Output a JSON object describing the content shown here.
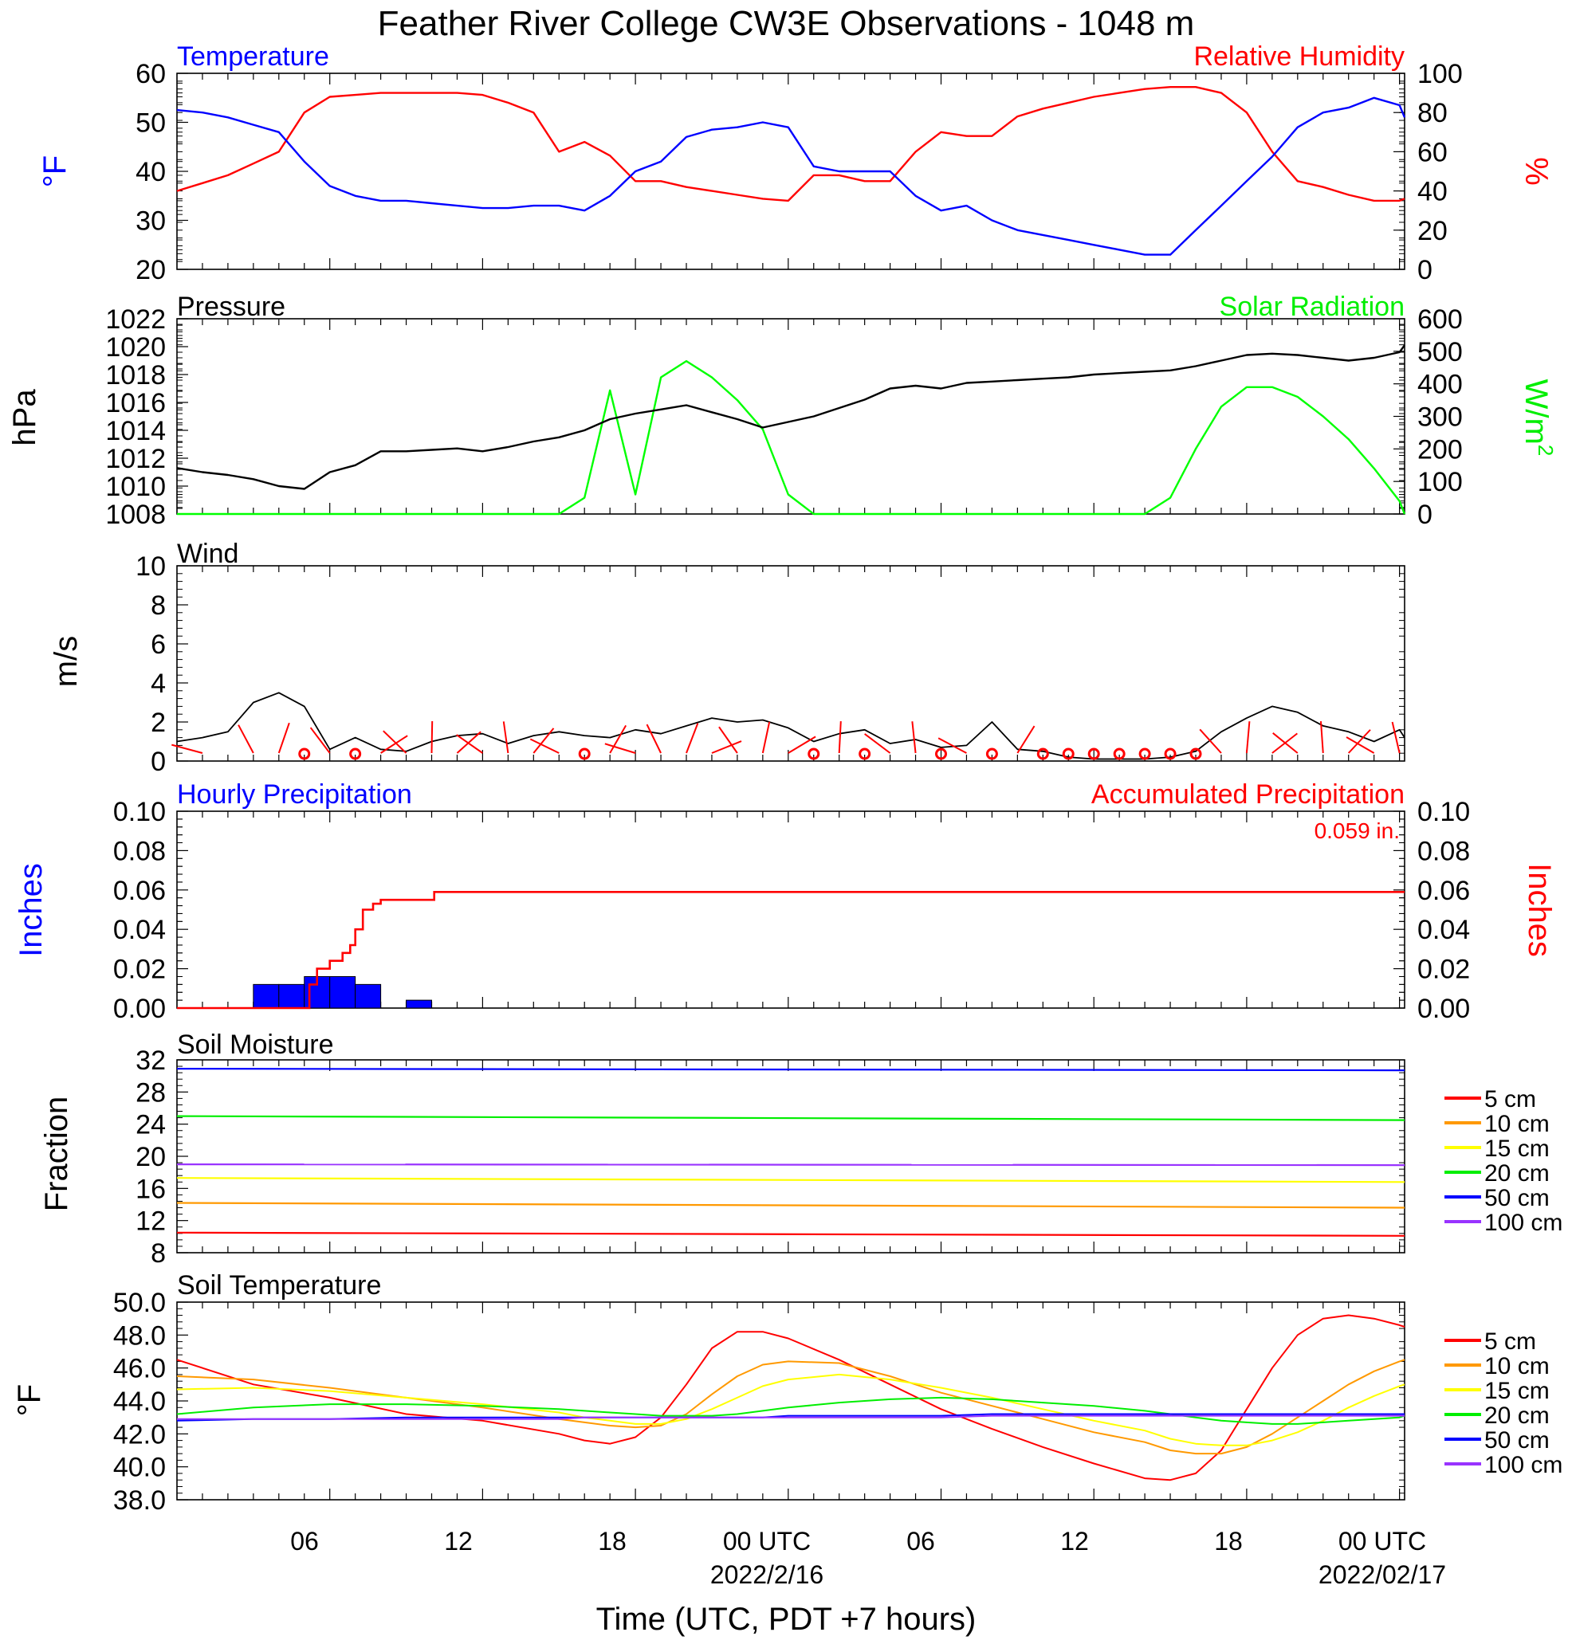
{
  "title": "Feather River College CW3E Observations - 1048 m",
  "xlabel": "Time (UTC, PDT +7 hours)",
  "x_ticks": [
    "06",
    "12",
    "18",
    "00 UTC",
    "06",
    "12",
    "18",
    "00 UTC"
  ],
  "x_dates": [
    "2022/2/16",
    "2022/02/17"
  ],
  "chart_data": [
    {
      "type": "line",
      "left_title": "Temperature",
      "right_title": "Relative Humidity",
      "ylabel_left": "°F",
      "ylabel_right": "%",
      "ylim_left": [
        20,
        60
      ],
      "ylim_right": [
        0,
        100
      ],
      "yticks_left": [
        "20",
        "30",
        "40",
        "50",
        "60"
      ],
      "yticks_right": [
        "0",
        "20",
        "40",
        "60",
        "80",
        "100"
      ],
      "colors": {
        "left": "#0000ff",
        "right": "#ff0000"
      },
      "x_hours": [
        0,
        1,
        2,
        3,
        4,
        5,
        6,
        7,
        8,
        9,
        10,
        11,
        12,
        13,
        14,
        15,
        16,
        17,
        18,
        19,
        20,
        21,
        22,
        23,
        24,
        25,
        26,
        27,
        28,
        29,
        30,
        31,
        32,
        33,
        34,
        35,
        36,
        37,
        38,
        39,
        40,
        41,
        42,
        43,
        44,
        45,
        46,
        47,
        48,
        48.2
      ],
      "series": [
        {
          "name": "Temperature",
          "axis": "left",
          "values": [
            52.5,
            52,
            51,
            49.5,
            48,
            42,
            37,
            35,
            34,
            34,
            33.5,
            33,
            32.5,
            32.5,
            33,
            33,
            32,
            35,
            40,
            42,
            47,
            48.5,
            49,
            50,
            49,
            41,
            40,
            40,
            40,
            35,
            32,
            33,
            30,
            28,
            27,
            26,
            25,
            24,
            23,
            23,
            28,
            33,
            38,
            43,
            49,
            52,
            53,
            55,
            53.5,
            51
          ]
        },
        {
          "name": "Relative Humidity",
          "axis": "right",
          "values": [
            40,
            44,
            48,
            54,
            60,
            80,
            88,
            89,
            90,
            90,
            90,
            90,
            89,
            85,
            80,
            60,
            65,
            58,
            45,
            45,
            42,
            40,
            38,
            36,
            35,
            48,
            48,
            45,
            45,
            60,
            70,
            68,
            68,
            78,
            82,
            85,
            88,
            90,
            92,
            93,
            93,
            90,
            80,
            60,
            45,
            42,
            38,
            35,
            35,
            36
          ]
        }
      ]
    },
    {
      "type": "line",
      "left_title": "Pressure",
      "right_title": "Solar Radiation",
      "ylabel_left": "hPa",
      "ylabel_right": "W/m",
      "ylabel_right_sup": "2",
      "ylim_left": [
        1008,
        1022
      ],
      "ylim_right": [
        0,
        600
      ],
      "yticks_left": [
        "1008",
        "1010",
        "1012",
        "1014",
        "1016",
        "1018",
        "1020",
        "1022"
      ],
      "yticks_right": [
        "0",
        "100",
        "200",
        "300",
        "400",
        "500",
        "600"
      ],
      "colors": {
        "left": "#000000",
        "right": "#00ff00"
      },
      "x_hours": [
        0,
        1,
        2,
        3,
        4,
        5,
        6,
        7,
        8,
        9,
        10,
        11,
        12,
        13,
        14,
        15,
        16,
        17,
        18,
        19,
        20,
        21,
        22,
        23,
        24,
        25,
        26,
        27,
        28,
        29,
        30,
        31,
        32,
        33,
        34,
        35,
        36,
        37,
        38,
        39,
        40,
        41,
        42,
        43,
        44,
        45,
        46,
        47,
        48,
        48.2
      ],
      "series": [
        {
          "name": "Pressure",
          "axis": "left",
          "values": [
            1011.3,
            1011,
            1010.8,
            1010.5,
            1010,
            1009.8,
            1011,
            1011.5,
            1012.5,
            1012.5,
            1012.6,
            1012.7,
            1012.5,
            1012.8,
            1013.2,
            1013.5,
            1014,
            1014.8,
            1015.2,
            1015.5,
            1015.8,
            1015.3,
            1014.8,
            1014.2,
            1014.6,
            1015,
            1015.6,
            1016.2,
            1017,
            1017.2,
            1017,
            1017.4,
            1017.5,
            1017.6,
            1017.7,
            1017.8,
            1018,
            1018.1,
            1018.2,
            1018.3,
            1018.6,
            1019,
            1019.4,
            1019.5,
            1019.4,
            1019.2,
            1019,
            1019.2,
            1019.6,
            1020.1
          ]
        },
        {
          "name": "Solar Radiation",
          "axis": "right",
          "values": [
            0,
            0,
            0,
            0,
            0,
            0,
            0,
            0,
            0,
            0,
            0,
            0,
            0,
            0,
            0,
            0,
            50,
            380,
            60,
            420,
            470,
            420,
            350,
            260,
            60,
            0,
            0,
            0,
            0,
            0,
            0,
            0,
            0,
            0,
            0,
            0,
            0,
            0,
            0,
            50,
            200,
            330,
            390,
            390,
            360,
            300,
            230,
            140,
            40,
            0
          ]
        }
      ]
    },
    {
      "type": "line",
      "left_title": "Wind",
      "ylabel_left": "m/s",
      "ylim_left": [
        0,
        10
      ],
      "yticks_left": [
        "0",
        "2",
        "4",
        "6",
        "8",
        "10"
      ],
      "colors": {
        "speed": "#000000",
        "barbs": "#ff0000"
      },
      "x_hours": [
        0,
        1,
        2,
        3,
        4,
        5,
        6,
        7,
        8,
        9,
        10,
        11,
        12,
        13,
        14,
        15,
        16,
        17,
        18,
        19,
        20,
        21,
        22,
        23,
        24,
        25,
        26,
        27,
        28,
        29,
        30,
        31,
        32,
        33,
        34,
        35,
        36,
        37,
        38,
        39,
        40,
        41,
        42,
        43,
        44,
        45,
        46,
        47,
        48,
        48.2
      ],
      "series": [
        {
          "name": "Wind speed",
          "values": [
            1,
            1.2,
            1.5,
            3,
            3.5,
            2.8,
            0.6,
            1.2,
            0.6,
            0.5,
            1,
            1.3,
            1.4,
            0.9,
            1.3,
            1.5,
            1.3,
            1.2,
            1.6,
            1.4,
            1.8,
            2.2,
            2,
            2.1,
            1.7,
            1,
            1.4,
            1.6,
            0.9,
            1.1,
            0.7,
            0.8,
            2,
            0.6,
            0.5,
            0.2,
            0.1,
            0.1,
            0.1,
            0.2,
            0.5,
            1.5,
            2.2,
            2.8,
            2.5,
            1.8,
            1.5,
            1,
            1.6,
            1.2
          ]
        }
      ],
      "barbs_hours": [
        1,
        3,
        4,
        5,
        6,
        7,
        8,
        9,
        10,
        11,
        12,
        13,
        14,
        15,
        16,
        17,
        18,
        19,
        20,
        21,
        22,
        23,
        24,
        25,
        26,
        27,
        28,
        29,
        30,
        31,
        32,
        33,
        34,
        35,
        36,
        37,
        38,
        39,
        40,
        41,
        42,
        43,
        44,
        45,
        46,
        47,
        48
      ],
      "calm_hours": [
        5,
        7,
        16,
        25,
        27,
        30,
        32,
        34,
        35,
        36,
        37,
        38,
        39,
        40
      ]
    },
    {
      "type": "bar",
      "left_title": "Hourly Precipitation",
      "right_title": "Accumulated Precipitation",
      "total_label": "0.059 in.",
      "ylabel_left": "Inches",
      "ylabel_right": "Inches",
      "ylim_left": [
        0,
        0.1
      ],
      "ylim_right": [
        0,
        0.1
      ],
      "yticks_left": [
        "0.00",
        "0.02",
        "0.04",
        "0.06",
        "0.08",
        "0.10"
      ],
      "yticks_right": [
        "0.00",
        "0.02",
        "0.04",
        "0.06",
        "0.08",
        "0.10"
      ],
      "colors": {
        "bars": "#0000ff",
        "accum": "#ff0000"
      },
      "bars": [
        {
          "start": 3,
          "end": 4,
          "value": 0.012
        },
        {
          "start": 4,
          "end": 5,
          "value": 0.012
        },
        {
          "start": 5,
          "end": 6,
          "value": 0.016
        },
        {
          "start": 6,
          "end": 7,
          "value": 0.016
        },
        {
          "start": 7,
          "end": 8,
          "value": 0.012
        },
        {
          "start": 9,
          "end": 10,
          "value": 0.004
        }
      ],
      "accum": {
        "x_hours": [
          0,
          3,
          3.5,
          3.8,
          4,
          4.5,
          5,
          5.2,
          5.5,
          6,
          6.5,
          6.8,
          7,
          7.3,
          7.7,
          8,
          9,
          9.5,
          10,
          10.1,
          48.2
        ],
        "values": [
          0,
          0,
          0,
          0,
          0,
          0,
          0,
          0.012,
          0.02,
          0.024,
          0.028,
          0.032,
          0.04,
          0.05,
          0.053,
          0.055,
          0.055,
          0.055,
          0.055,
          0.059,
          0.059
        ]
      }
    },
    {
      "type": "line",
      "left_title": "Soil Moisture",
      "ylabel_left": "Fraction",
      "ylim_left": [
        8,
        32
      ],
      "yticks_left": [
        "8",
        "12",
        "16",
        "20",
        "24",
        "28",
        "32"
      ],
      "x_hours": [
        0,
        48.2
      ],
      "series": [
        {
          "name": "5 cm",
          "color": "#ff0000",
          "values": [
            10.5,
            10.1
          ]
        },
        {
          "name": "10 cm",
          "color": "#ff9900",
          "values": [
            14.2,
            13.6
          ]
        },
        {
          "name": "15 cm",
          "color": "#ffff00",
          "values": [
            17.3,
            16.8
          ]
        },
        {
          "name": "20 cm",
          "color": "#00ee00",
          "values": [
            25,
            24.5
          ]
        },
        {
          "name": "50 cm",
          "color": "#0000ff",
          "values": [
            30.9,
            30.7
          ]
        },
        {
          "name": "100 cm",
          "color": "#9933ff",
          "values": [
            19,
            18.9
          ]
        }
      ],
      "legend": [
        "5 cm",
        "10 cm",
        "15 cm",
        "20 cm",
        "50 cm",
        "100 cm"
      ]
    },
    {
      "type": "line",
      "left_title": "Soil Temperature",
      "ylabel_left": "°F",
      "ylim_left": [
        38,
        50
      ],
      "yticks_left": [
        "38.0",
        "40.0",
        "42.0",
        "44.0",
        "46.0",
        "48.0",
        "50.0"
      ],
      "x_hours": [
        0,
        3,
        6,
        9,
        12,
        15,
        16,
        17,
        18,
        19,
        20,
        21,
        22,
        23,
        24,
        26,
        28,
        30,
        32,
        34,
        36,
        38,
        39,
        40,
        41,
        42,
        43,
        44,
        45,
        46,
        47,
        48,
        48.2
      ],
      "series": [
        {
          "name": "5 cm",
          "color": "#ff0000",
          "values": [
            46.5,
            45,
            44.2,
            43.2,
            42.8,
            42,
            41.6,
            41.4,
            41.8,
            43,
            45,
            47.2,
            48.2,
            48.2,
            47.8,
            46.5,
            45,
            43.5,
            42.3,
            41.2,
            40.2,
            39.3,
            39.2,
            39.6,
            41,
            43.5,
            46,
            48,
            49,
            49.2,
            49,
            48.6,
            48.5
          ]
        },
        {
          "name": "10 cm",
          "color": "#ff9900",
          "values": [
            45.5,
            45.3,
            44.8,
            44.2,
            43.6,
            42.9,
            42.7,
            42.5,
            42.4,
            42.5,
            43.2,
            44.4,
            45.5,
            46.2,
            46.4,
            46.3,
            45.5,
            44.5,
            43.7,
            42.9,
            42.1,
            41.5,
            41,
            40.8,
            40.8,
            41.2,
            42,
            43,
            44,
            45,
            45.8,
            46.4,
            46.5
          ]
        },
        {
          "name": "15 cm",
          "color": "#ffff00",
          "values": [
            44.7,
            44.8,
            44.6,
            44.2,
            43.8,
            43.3,
            43,
            42.8,
            42.6,
            42.6,
            42.9,
            43.5,
            44.2,
            44.9,
            45.3,
            45.6,
            45.3,
            44.8,
            44.2,
            43.5,
            42.8,
            42.2,
            41.7,
            41.4,
            41.3,
            41.3,
            41.6,
            42.1,
            42.8,
            43.6,
            44.3,
            44.9,
            45
          ]
        },
        {
          "name": "20 cm",
          "color": "#00ee00",
          "values": [
            43.2,
            43.6,
            43.8,
            43.8,
            43.7,
            43.5,
            43.4,
            43.3,
            43.2,
            43.1,
            43.1,
            43.1,
            43.2,
            43.4,
            43.6,
            43.9,
            44.1,
            44.2,
            44.1,
            43.9,
            43.7,
            43.4,
            43.2,
            43,
            42.8,
            42.7,
            42.6,
            42.6,
            42.7,
            42.8,
            42.9,
            43,
            43.1
          ]
        },
        {
          "name": "50 cm",
          "color": "#0000ff",
          "values": [
            42.8,
            42.9,
            42.9,
            43,
            43,
            43,
            43,
            43,
            43,
            43,
            43,
            43,
            43,
            43,
            43.1,
            43.1,
            43.1,
            43.1,
            43.2,
            43.2,
            43.2,
            43.2,
            43.2,
            43.2,
            43.2,
            43.2,
            43.2,
            43.2,
            43.2,
            43.2,
            43.2,
            43.2,
            43.2
          ]
        },
        {
          "name": "100 cm",
          "color": "#9933ff",
          "values": [
            42.9,
            42.9,
            42.9,
            42.9,
            42.9,
            42.9,
            43,
            43,
            43,
            43,
            43,
            43,
            43,
            43,
            43,
            43,
            43,
            43,
            43.1,
            43.1,
            43.1,
            43.1,
            43.1,
            43.1,
            43.1,
            43.1,
            43.1,
            43.1,
            43.1,
            43.1,
            43.1,
            43.1,
            43.1
          ]
        }
      ],
      "legend": [
        "5 cm",
        "10 cm",
        "15 cm",
        "20 cm",
        "50 cm",
        "100 cm"
      ]
    }
  ]
}
